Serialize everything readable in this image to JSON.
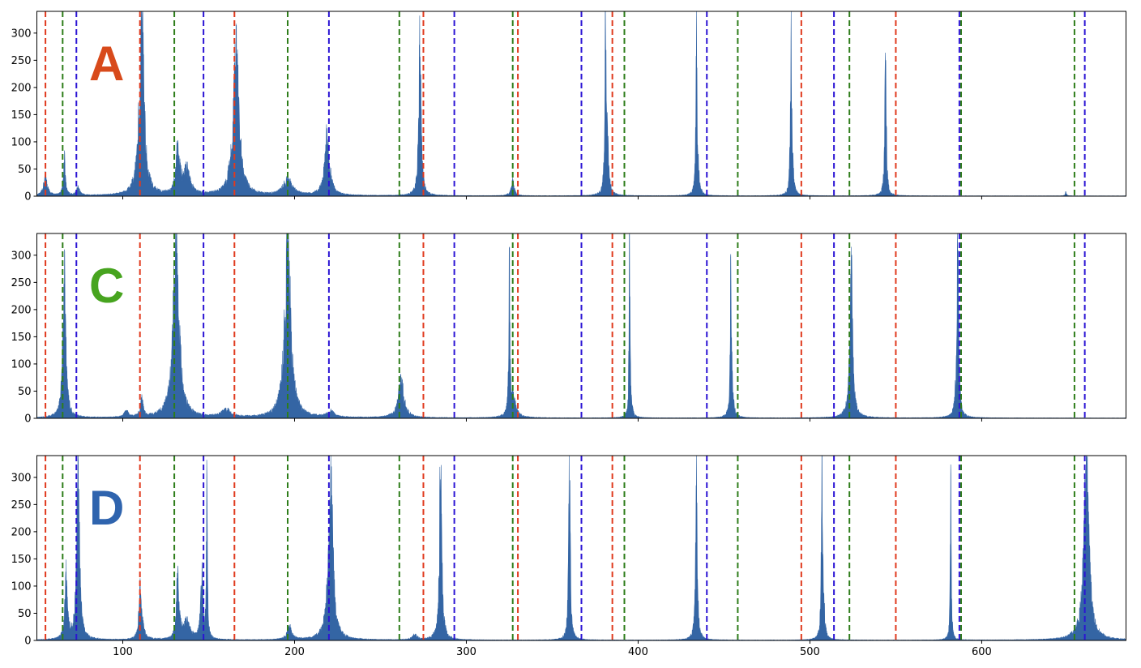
{
  "chart_data": {
    "type": "bar",
    "subtype": "histogram-with-reference-lines",
    "x_range": [
      50,
      684
    ],
    "y_range": [
      0,
      340
    ],
    "x_ticks": [
      100,
      200,
      300,
      400,
      500,
      600
    ],
    "x_tick_labels": [
      "100",
      "200",
      "300",
      "400",
      "500",
      "600"
    ],
    "y_ticks": [
      0,
      50,
      100,
      150,
      200,
      250,
      300
    ],
    "y_tick_labels": [
      "0",
      "50",
      "100",
      "150",
      "200",
      "250",
      "300"
    ],
    "histogram_color": "#3465a4",
    "reference_lines": {
      "style": "dashed",
      "red": {
        "color": "#e03a1e",
        "x": [
          55,
          110,
          165,
          275,
          330,
          385,
          495,
          550
        ]
      },
      "green": {
        "color": "#2e7d1a",
        "x": [
          65,
          130,
          196,
          261,
          327,
          392,
          458,
          523,
          588,
          654
        ]
      },
      "blue": {
        "color": "#2b14d4",
        "x": [
          73,
          147,
          220,
          293,
          367,
          440,
          514,
          587,
          660
        ]
      }
    },
    "panels": [
      {
        "label": "A",
        "label_color": "#d84a1b",
        "peaks": [
          {
            "x": 55,
            "height": 40,
            "width": 1.5
          },
          {
            "x": 66,
            "height": 80,
            "width": 0.8
          },
          {
            "x": 74,
            "height": 15,
            "width": 1.5
          },
          {
            "x": 111,
            "height": 340,
            "width": 2.0
          },
          {
            "x": 132,
            "height": 90,
            "width": 1.5
          },
          {
            "x": 137,
            "height": 50,
            "width": 3.0
          },
          {
            "x": 166,
            "height": 280,
            "width": 2.5
          },
          {
            "x": 196,
            "height": 30,
            "width": 4.0
          },
          {
            "x": 219,
            "height": 120,
            "width": 2.0
          },
          {
            "x": 273,
            "height": 340,
            "width": 0.9
          },
          {
            "x": 327,
            "height": 30,
            "width": 1.2
          },
          {
            "x": 381,
            "height": 340,
            "width": 0.5
          },
          {
            "x": 382,
            "height": 110,
            "width": 1.0
          },
          {
            "x": 434,
            "height": 340,
            "width": 0.5
          },
          {
            "x": 435,
            "height": 35,
            "width": 1.0
          },
          {
            "x": 489,
            "height": 340,
            "width": 0.5
          },
          {
            "x": 490,
            "height": 40,
            "width": 1.0
          },
          {
            "x": 544,
            "height": 305,
            "width": 0.6
          },
          {
            "x": 649,
            "height": 8,
            "width": 0.5
          }
        ]
      },
      {
        "label": "C",
        "label_color": "#47a41f",
        "peaks": [
          {
            "x": 66,
            "height": 300,
            "width": 1.2
          },
          {
            "x": 102,
            "height": 15,
            "width": 1.5
          },
          {
            "x": 111,
            "height": 35,
            "width": 1.2
          },
          {
            "x": 131,
            "height": 340,
            "width": 2.5
          },
          {
            "x": 160,
            "height": 15,
            "width": 4.0
          },
          {
            "x": 196,
            "height": 340,
            "width": 2.5
          },
          {
            "x": 221,
            "height": 12,
            "width": 3.0
          },
          {
            "x": 262,
            "height": 70,
            "width": 2.5
          },
          {
            "x": 325,
            "height": 340,
            "width": 0.4
          },
          {
            "x": 327,
            "height": 40,
            "width": 2.5
          },
          {
            "x": 395,
            "height": 340,
            "width": 0.4
          },
          {
            "x": 396,
            "height": 12,
            "width": 1.5
          },
          {
            "x": 454,
            "height": 340,
            "width": 0.5
          },
          {
            "x": 455,
            "height": 20,
            "width": 1.5
          },
          {
            "x": 524,
            "height": 300,
            "width": 1.2
          },
          {
            "x": 586,
            "height": 340,
            "width": 0.8
          }
        ]
      },
      {
        "label": "D",
        "label_color": "#2f64ae",
        "peaks": [
          {
            "x": 67,
            "height": 130,
            "width": 1.0
          },
          {
            "x": 74,
            "height": 340,
            "width": 1.2
          },
          {
            "x": 110,
            "height": 130,
            "width": 0.6
          },
          {
            "x": 111,
            "height": 30,
            "width": 2.0
          },
          {
            "x": 132,
            "height": 130,
            "width": 1.0
          },
          {
            "x": 137,
            "height": 35,
            "width": 3.0
          },
          {
            "x": 146,
            "height": 120,
            "width": 1.0
          },
          {
            "x": 149,
            "height": 340,
            "width": 0.4
          },
          {
            "x": 197,
            "height": 25,
            "width": 2.0
          },
          {
            "x": 221,
            "height": 340,
            "width": 1.8
          },
          {
            "x": 270,
            "height": 10,
            "width": 2.0
          },
          {
            "x": 285,
            "height": 340,
            "width": 1.0
          },
          {
            "x": 360,
            "height": 340,
            "width": 0.7
          },
          {
            "x": 434,
            "height": 340,
            "width": 0.7
          },
          {
            "x": 507,
            "height": 340,
            "width": 0.5
          },
          {
            "x": 508,
            "height": 50,
            "width": 1.0
          },
          {
            "x": 582,
            "height": 340,
            "width": 0.4
          },
          {
            "x": 661,
            "height": 340,
            "width": 2.2
          }
        ]
      }
    ]
  }
}
